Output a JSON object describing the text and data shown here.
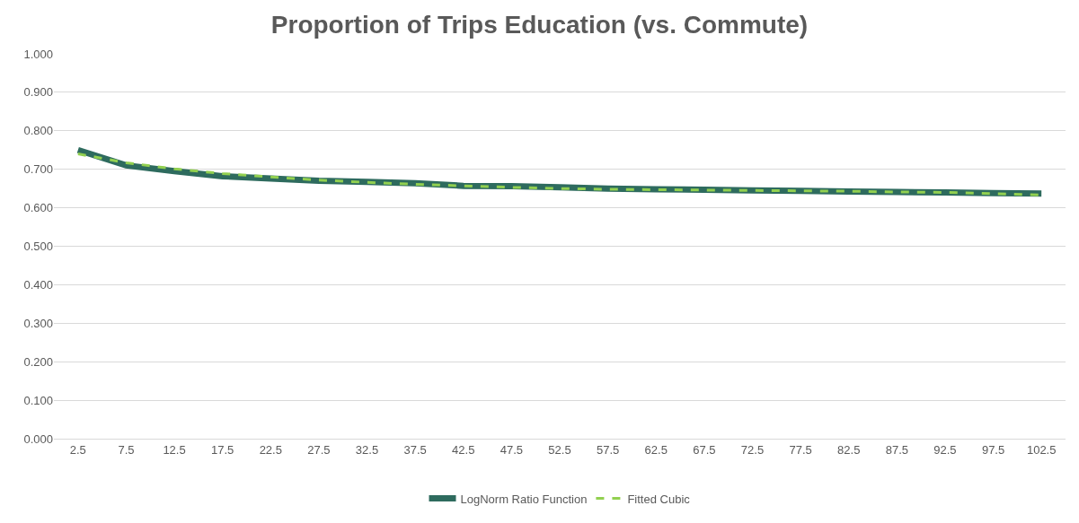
{
  "chart_data": {
    "type": "line",
    "title": "Proportion of Trips Education (vs. Commute)",
    "categories": [
      "2.5",
      "7.5",
      "12.5",
      "17.5",
      "22.5",
      "27.5",
      "32.5",
      "37.5",
      "42.5",
      "47.5",
      "52.5",
      "57.5",
      "62.5",
      "67.5",
      "72.5",
      "77.5",
      "82.5",
      "87.5",
      "92.5",
      "97.5",
      "102.5"
    ],
    "series": [
      {
        "name": "LogNorm Ratio Function",
        "color": "#2e6b5e",
        "line_style": "solid",
        "values": [
          0.75,
          0.71,
          0.695,
          0.682,
          0.676,
          0.67,
          0.667,
          0.664,
          0.657,
          0.656,
          0.653,
          0.65,
          0.648,
          0.647,
          0.645,
          0.644,
          0.642,
          0.641,
          0.64,
          0.638,
          0.637
        ]
      },
      {
        "name": "Fitted Cubic",
        "color": "#92d050",
        "line_style": "dashed",
        "values": [
          0.74,
          0.717,
          0.701,
          0.689,
          0.68,
          0.672,
          0.666,
          0.661,
          0.657,
          0.653,
          0.65,
          0.648,
          0.647,
          0.646,
          0.645,
          0.644,
          0.643,
          0.641,
          0.64,
          0.637,
          0.633
        ]
      }
    ],
    "ylim": [
      0,
      1
    ],
    "yticks": [
      {
        "value": 0,
        "label": "0.000"
      },
      {
        "value": 0.1,
        "label": "0.100"
      },
      {
        "value": 0.2,
        "label": "0.200"
      },
      {
        "value": 0.3,
        "label": "0.300"
      },
      {
        "value": 0.4,
        "label": "0.400"
      },
      {
        "value": 0.5,
        "label": "0.500"
      },
      {
        "value": 0.6,
        "label": "0.600"
      },
      {
        "value": 0.7,
        "label": "0.700"
      },
      {
        "value": 0.8,
        "label": "0.800"
      },
      {
        "value": 0.9,
        "label": "0.900"
      },
      {
        "value": 1,
        "label": "1.000"
      }
    ],
    "grid": "y",
    "legend": "bottom",
    "marker": "none"
  }
}
